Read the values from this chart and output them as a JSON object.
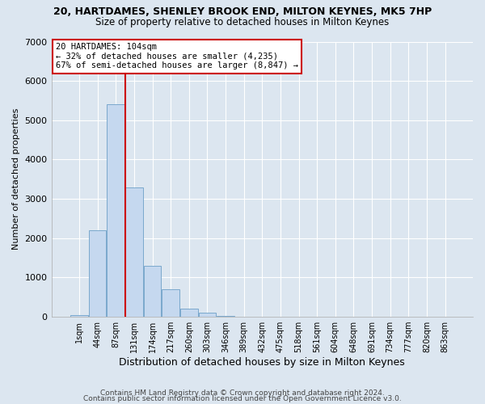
{
  "title": "20, HARTDAMES, SHENLEY BROOK END, MILTON KEYNES, MK5 7HP",
  "subtitle": "Size of property relative to detached houses in Milton Keynes",
  "xlabel": "Distribution of detached houses by size in Milton Keynes",
  "ylabel": "Number of detached properties",
  "bin_labels": [
    "1sqm",
    "44sqm",
    "87sqm",
    "131sqm",
    "174sqm",
    "217sqm",
    "260sqm",
    "303sqm",
    "346sqm",
    "389sqm",
    "432sqm",
    "475sqm",
    "518sqm",
    "561sqm",
    "604sqm",
    "648sqm",
    "691sqm",
    "734sqm",
    "777sqm",
    "820sqm",
    "863sqm"
  ],
  "bar_heights": [
    50,
    2200,
    5400,
    3300,
    1300,
    700,
    200,
    100,
    30,
    10,
    5,
    2,
    1,
    0,
    0,
    0,
    0,
    0,
    0,
    0,
    0
  ],
  "bar_color": "#c5d8ef",
  "bar_edge_color": "#7aa8cc",
  "property_label": "20 HARTDAMES: 104sqm",
  "pct_smaller_label": "← 32% of detached houses are smaller (4,235)",
  "pct_larger_label": "67% of semi-detached houses are larger (8,847) →",
  "vline_color": "#cc0000",
  "annotation_box_edge_color": "#cc0000",
  "vline_x_index": 2.5,
  "ylim": [
    0,
    7000
  ],
  "yticks": [
    0,
    1000,
    2000,
    3000,
    4000,
    5000,
    6000,
    7000
  ],
  "background_color": "#dce6f0",
  "plot_bg_color": "#dce6f0",
  "footer1": "Contains HM Land Registry data © Crown copyright and database right 2024.",
  "footer2": "Contains public sector information licensed under the Open Government Licence v3.0."
}
